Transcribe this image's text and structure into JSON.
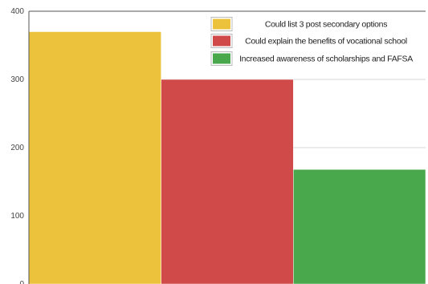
{
  "chart_data": {
    "type": "bar",
    "title": "",
    "xlabel": "",
    "ylabel": "",
    "ylim": [
      0,
      400
    ],
    "y_ticks": [
      0,
      100,
      200,
      300,
      400
    ],
    "grid": true,
    "legend_position": "top-right",
    "series": [
      {
        "name": "Could list 3 post secondary options",
        "value": 370,
        "color": "#ecc13b"
      },
      {
        "name": "Could explain the benefits of vocational school",
        "value": 300,
        "color": "#cf4a48"
      },
      {
        "name": "Increased awareness of scholarships and FAFSA",
        "value": 168,
        "color": "#4aa84c"
      }
    ]
  }
}
